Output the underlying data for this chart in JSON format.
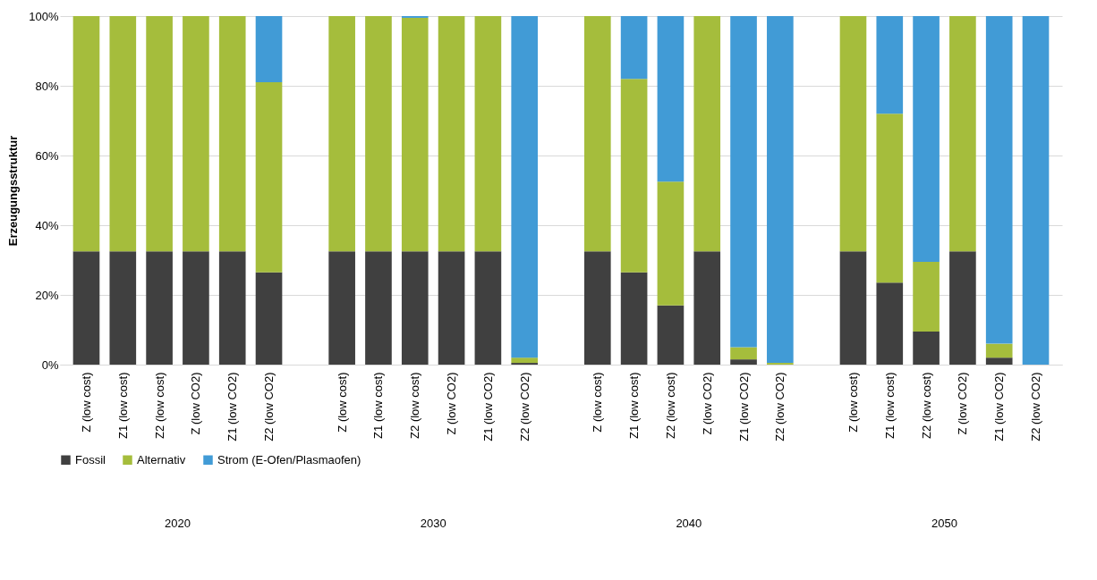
{
  "chart_data": {
    "type": "bar",
    "stacked": true,
    "ylabel": "Erzeugungsstruktur",
    "categories": [
      "Z (low cost)",
      "Z1 (low cost)",
      "Z2 (low cost)",
      "Z (low CO2)",
      "Z1 (low CO2)",
      "Z2 (low CO2)",
      null,
      "Z (low cost)",
      "Z1 (low cost)",
      "Z2 (low cost)",
      "Z (low CO2)",
      "Z1 (low CO2)",
      "Z2 (low CO2)",
      null,
      "Z (low cost)",
      "Z1 (low cost)",
      "Z2 (low cost)",
      "Z (low CO2)",
      "Z1 (low CO2)",
      "Z2 (low CO2)",
      null,
      "Z (low cost)",
      "Z1 (low cost)",
      "Z2 (low cost)",
      "Z (low CO2)",
      "Z1 (low CO2)",
      "Z2 (low CO2)"
    ],
    "annotations": [
      "2020",
      "2030",
      "2040",
      "2050"
    ],
    "ylim": [
      0,
      100
    ],
    "yticks": [
      {
        "value": 0,
        "label": "0%"
      },
      {
        "value": 20,
        "label": "20%"
      },
      {
        "value": 40,
        "label": "40%"
      },
      {
        "value": 60,
        "label": "60%"
      },
      {
        "value": 80,
        "label": "80%"
      },
      {
        "value": 100,
        "label": "100%"
      }
    ],
    "grid": "y",
    "legend": "bottom",
    "series": [
      {
        "name": "Fossil",
        "color": "#404040",
        "values": [
          32.5,
          32.5,
          32.5,
          32.5,
          32.5,
          26.5,
          null,
          32.5,
          32.5,
          32.5,
          32.5,
          32.5,
          0.5,
          null,
          32.5,
          26.5,
          17,
          32.5,
          1.5,
          0,
          null,
          32.5,
          23.5,
          9.5,
          32.5,
          2,
          0
        ]
      },
      {
        "name": "Alternativ",
        "color": "#a5bd3c",
        "values": [
          67.5,
          67.5,
          67.5,
          67.5,
          67.5,
          54.5,
          null,
          67.5,
          67.5,
          67,
          67.5,
          67.5,
          1.5,
          null,
          67.5,
          55.5,
          35.5,
          67.5,
          3.5,
          0.5,
          null,
          67.5,
          48.5,
          20,
          67.5,
          4,
          0
        ]
      },
      {
        "name": "Strom (E-Ofen/Plasmaofen)",
        "color": "#419bd6",
        "values": [
          0,
          0,
          0,
          0,
          0,
          19,
          null,
          0,
          0,
          0.5,
          0,
          0,
          98,
          null,
          0,
          18,
          47.5,
          0,
          95,
          99.5,
          null,
          0,
          28,
          70.5,
          0,
          94,
          100
        ]
      }
    ]
  }
}
